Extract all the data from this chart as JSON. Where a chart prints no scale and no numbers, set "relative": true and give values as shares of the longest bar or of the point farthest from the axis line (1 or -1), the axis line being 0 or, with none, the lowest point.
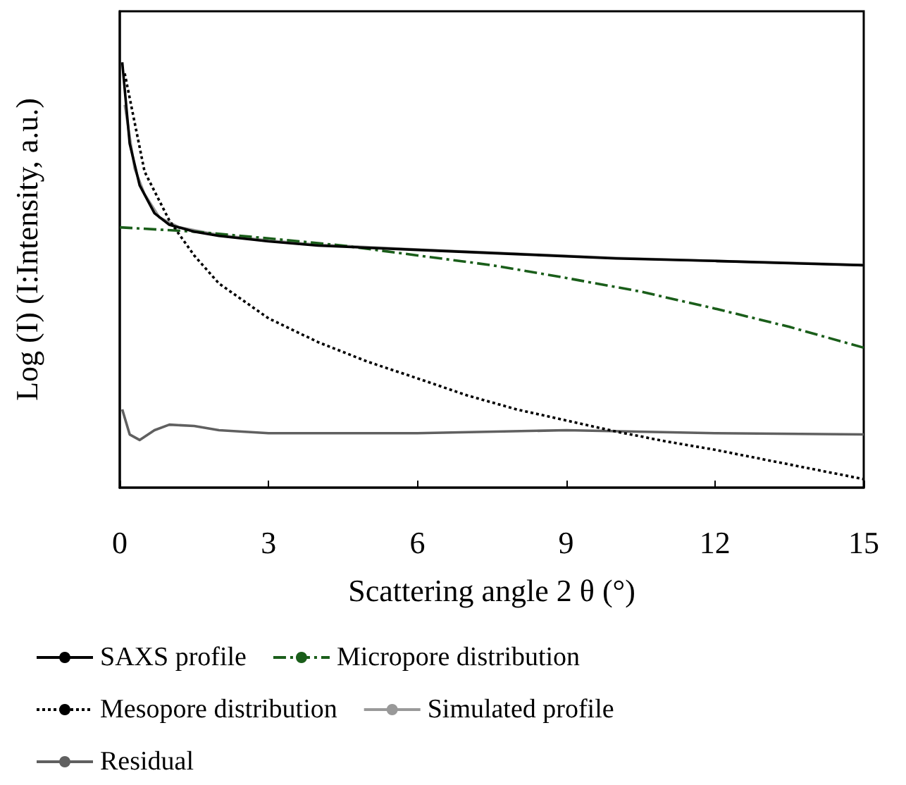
{
  "chart_data": {
    "type": "line",
    "xlabel": "Scattering angle 2 θ (°)",
    "ylabel": "Log (I) (I:Intensity, a.u.)",
    "relative": true,
    "xlim": [
      0,
      15
    ],
    "xticks": [
      0,
      3,
      6,
      9,
      12,
      15
    ],
    "tick_labels": "x",
    "grid": false,
    "legend": "bottom",
    "marker": "none",
    "series": [
      {
        "name": "SAXS profile",
        "color": "#000000",
        "line_style": "solid",
        "x": [
          0.05,
          0.2,
          0.4,
          0.7,
          1,
          1.5,
          2,
          3,
          4,
          6,
          8,
          10,
          12,
          14,
          15
        ],
        "values": [
          1.0,
          0.809,
          0.711,
          0.645,
          0.618,
          0.602,
          0.592,
          0.579,
          0.569,
          0.559,
          0.549,
          0.539,
          0.533,
          0.526,
          0.523
        ]
      },
      {
        "name": "Micropore distribution",
        "color": "#1a5e1a",
        "line_style": "dashed",
        "x": [
          0,
          1.5,
          3,
          4.5,
          6,
          7.5,
          9,
          10.5,
          12,
          13.5,
          15
        ],
        "values": [
          0.612,
          0.602,
          0.586,
          0.569,
          0.546,
          0.523,
          0.493,
          0.461,
          0.421,
          0.378,
          0.329
        ]
      },
      {
        "name": "Mesopore distribution",
        "color": "#000000",
        "line_style": "dotted",
        "x": [
          0.1,
          0.5,
          1,
          1.5,
          2,
          3,
          4,
          5,
          6,
          7,
          8,
          9,
          10,
          11,
          12,
          13,
          14,
          15
        ],
        "values": [
          0.974,
          0.743,
          0.628,
          0.546,
          0.48,
          0.398,
          0.342,
          0.296,
          0.257,
          0.217,
          0.184,
          0.158,
          0.132,
          0.109,
          0.089,
          0.066,
          0.043,
          0.02
        ]
      },
      {
        "name": "Simulated profile",
        "color": "#999999",
        "line_style": "solid",
        "x": [
          0.1,
          0.3,
          0.5,
          0.8,
          1.2,
          2,
          3,
          4,
          6,
          8,
          10,
          12,
          14,
          15
        ],
        "values": [
          0.9,
          0.75,
          0.69,
          0.635,
          0.612,
          0.594,
          0.581,
          0.571,
          0.56,
          0.55,
          0.54,
          0.533,
          0.527,
          0.523
        ]
      },
      {
        "name": "Residual",
        "color": "#606060",
        "line_style": "solid",
        "x": [
          0.05,
          0.2,
          0.4,
          0.7,
          1,
          1.5,
          2,
          3,
          6,
          9,
          12,
          15
        ],
        "values": [
          0.184,
          0.125,
          0.112,
          0.135,
          0.148,
          0.145,
          0.135,
          0.128,
          0.128,
          0.135,
          0.128,
          0.125
        ]
      }
    ]
  }
}
